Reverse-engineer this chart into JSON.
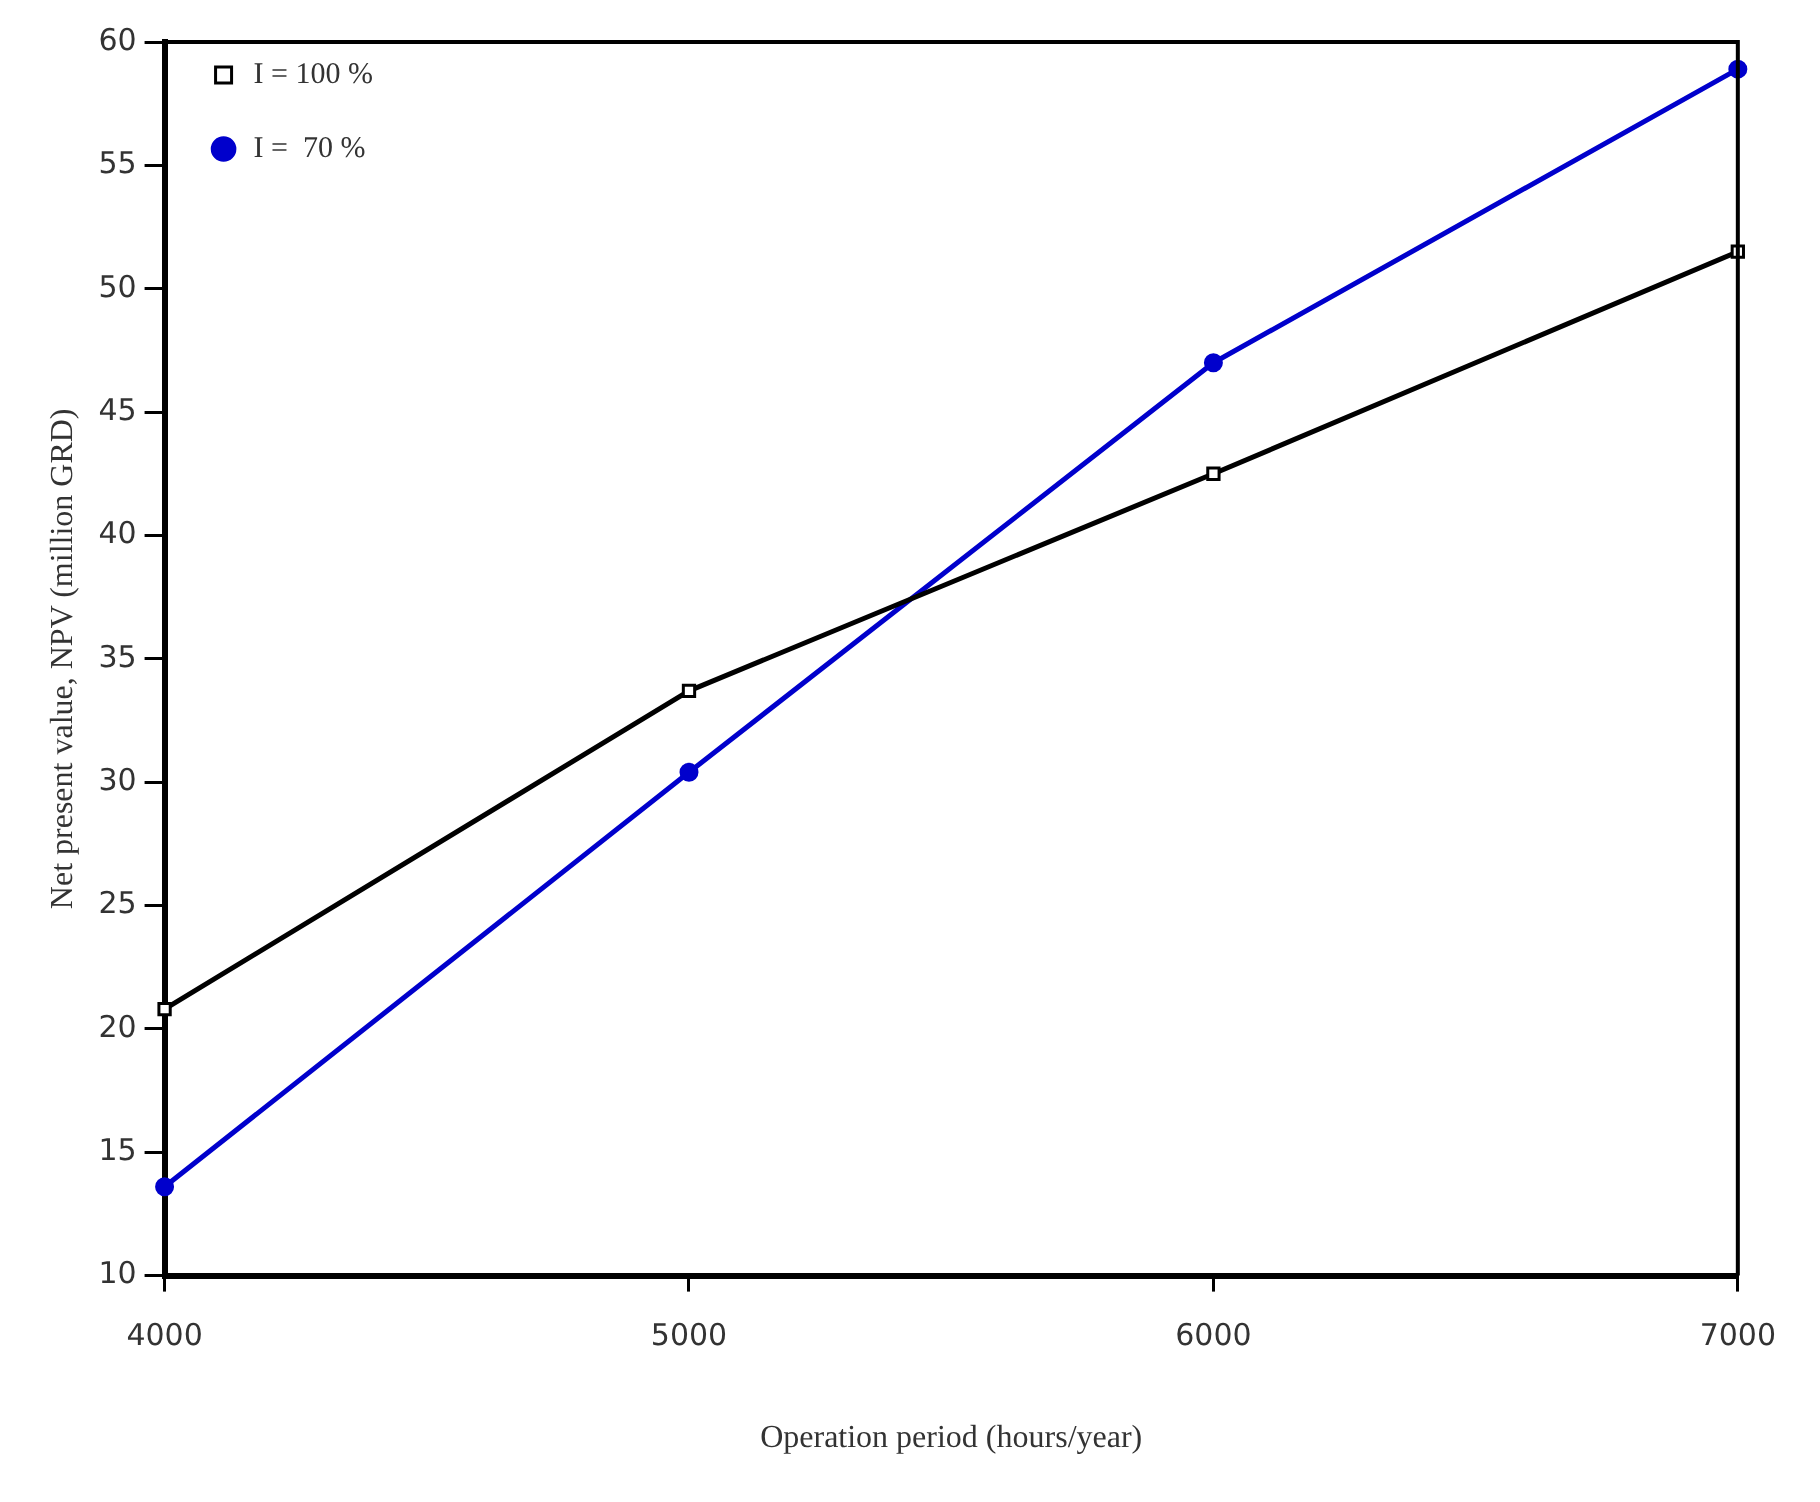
{
  "chart_data": {
    "type": "line",
    "xlabel": "Operation period (hours/year)",
    "ylabel": "Net present value, NPV (million GRD)",
    "x": [
      4000,
      5000,
      6000,
      7000
    ],
    "series": [
      {
        "name": "I = 100 %",
        "color": "#000000",
        "values": [
          20.8,
          33.7,
          42.5,
          51.5
        ],
        "marker": "square"
      },
      {
        "name": "I =  70 %",
        "color": "#0000cc",
        "values": [
          13.6,
          30.4,
          47.0,
          58.9
        ],
        "marker": "circle"
      }
    ],
    "xlim": [
      4000,
      7000
    ],
    "xticks": [
      4000,
      5000,
      6000,
      7000
    ],
    "ylim": [
      10,
      60
    ],
    "yticks": [
      10,
      15,
      20,
      25,
      30,
      35,
      40,
      45,
      50,
      55,
      60
    ],
    "grid": false,
    "legend": "top left",
    "line_style": "solid"
  }
}
